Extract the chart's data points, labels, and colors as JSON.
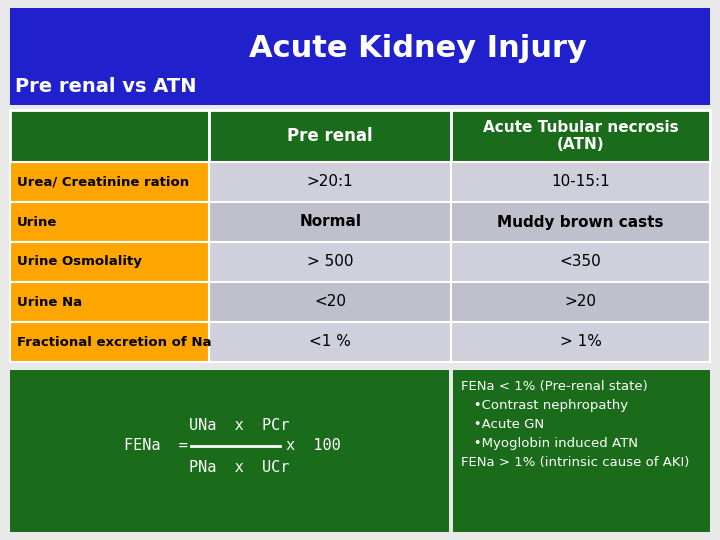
{
  "title": "Acute Kidney Injury",
  "subtitle": "Pre renal vs ATN",
  "header_bg": "#2020CC",
  "title_color": "#FFFFFF",
  "subtitle_color": "#FFFFFF",
  "table_header_bg": "#1a6b1a",
  "table_header_color": "#FFFFFF",
  "row_label_bg": "#FFA500",
  "row_label_color": "#000000",
  "row_data_bg_1": "#D0D0DC",
  "row_data_bg_2": "#C0C0CC",
  "row_data_color": "#000000",
  "bottom_bg": "#1a6b1a",
  "bottom_text_color": "#FFFFFF",
  "col_headers": [
    "",
    "Pre renal",
    "Acute Tubular necrosis\n(ATN)"
  ],
  "rows": [
    [
      "Urea/ Creatinine ration",
      ">20:1",
      "10-15:1"
    ],
    [
      "Urine",
      "Normal",
      "Muddy brown casts"
    ],
    [
      "Urine Osmolality",
      "> 500",
      "<350"
    ],
    [
      "Urine Na",
      "<20",
      ">20"
    ],
    [
      "Fractional excretion of Na",
      "<1 %",
      "> 1%"
    ]
  ],
  "bold_row": 1,
  "notes_line1": "FENa < 1% (Pre-renal state)",
  "notes_lines": [
    "   •Contrast nephropathy",
    "   •Acute GN",
    "   •Myoglobin induced ATN",
    "FENa > 1% (intrinsic cause of AKI)"
  ],
  "bg_color": "#E8E8E8"
}
